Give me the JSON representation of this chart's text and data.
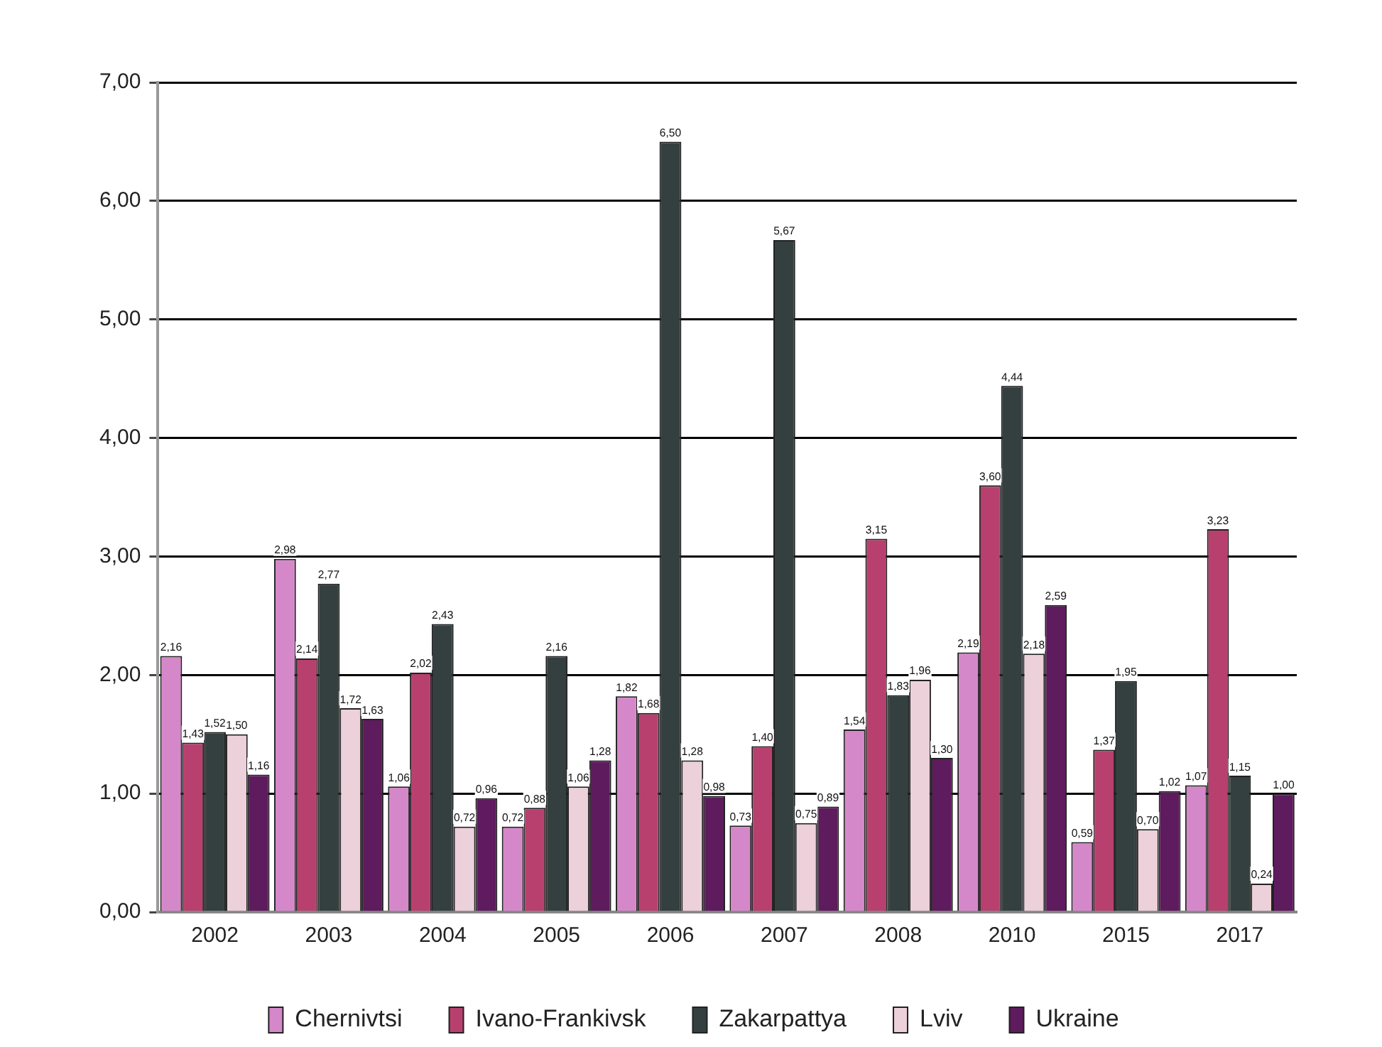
{
  "chart_data": {
    "type": "bar",
    "categories": [
      "2002",
      "2003",
      "2004",
      "2005",
      "2006",
      "2007",
      "2008",
      "2010",
      "2015",
      "2017"
    ],
    "series": [
      {
        "name": "Chernivtsi",
        "color": "#d588c9",
        "values": [
          2.16,
          2.98,
          1.06,
          0.72,
          1.82,
          0.73,
          1.54,
          2.19,
          0.59,
          1.07
        ],
        "value_labels": [
          "2,16",
          "2,98",
          "1,06",
          "0,72",
          "1,82",
          "0,73",
          "1,54",
          "2,19",
          "0,59",
          "1,07"
        ]
      },
      {
        "name": "Ivano-Frankivsk",
        "color": "#b8406e",
        "values": [
          1.43,
          2.14,
          2.02,
          0.88,
          1.68,
          1.4,
          3.15,
          3.6,
          1.37,
          3.23
        ],
        "value_labels": [
          "1,43",
          "2,14",
          "2,02",
          "0,88",
          "1,68",
          "1,40",
          "3,15",
          "3,60",
          "1,37",
          "3,23"
        ]
      },
      {
        "name": "Zakarpattya",
        "color": "#33403f",
        "values": [
          1.52,
          2.77,
          2.43,
          2.16,
          6.5,
          5.67,
          1.83,
          4.44,
          1.95,
          1.15
        ],
        "value_labels": [
          "1,52",
          "2,77",
          "2,43",
          "2,16",
          "6,50",
          "5,67",
          "1,83",
          "4,44",
          "1,95",
          "1,15"
        ]
      },
      {
        "name": "Lviv",
        "color": "#ecd0da",
        "values": [
          1.5,
          1.72,
          0.72,
          1.06,
          1.28,
          0.75,
          1.96,
          2.18,
          0.7,
          0.24
        ],
        "value_labels": [
          "1,50",
          "1,72",
          "0,72",
          "1,06",
          "1,28",
          "0,75",
          "1,96",
          "2,18",
          "0,70",
          "0,24"
        ]
      },
      {
        "name": "Ukraine",
        "color": "#5e1b5e",
        "values": [
          1.16,
          1.63,
          0.96,
          1.28,
          0.98,
          0.89,
          1.3,
          2.59,
          1.02,
          1.0
        ],
        "value_labels": [
          "1,16",
          "1,63",
          "0,96",
          "1,28",
          "0,98",
          "0,89",
          "1,30",
          "2,59",
          "1,02",
          "1,00"
        ]
      }
    ],
    "ylim": [
      0,
      7
    ],
    "yticks": [
      {
        "value": 0,
        "label": "0,00"
      },
      {
        "value": 1,
        "label": "1,00"
      },
      {
        "value": 2,
        "label": "2,00"
      },
      {
        "value": 3,
        "label": "3,00"
      },
      {
        "value": 4,
        "label": "4,00"
      },
      {
        "value": 5,
        "label": "5,00"
      },
      {
        "value": 6,
        "label": "6,00"
      },
      {
        "value": 7,
        "label": "7,00"
      }
    ],
    "grid": "y",
    "legend": "bottom"
  }
}
